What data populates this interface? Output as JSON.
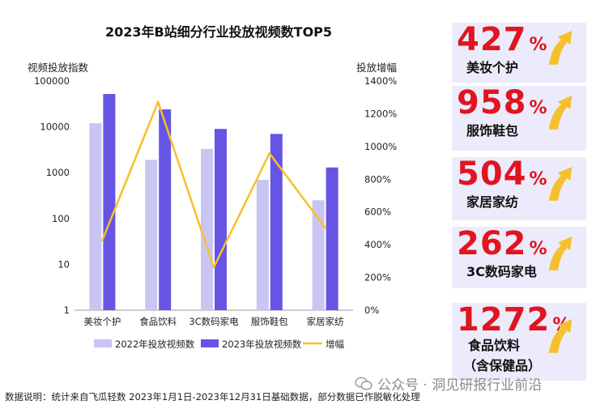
{
  "chart_data": {
    "type": "bar+line",
    "title": "2023年B站细分行业投放视频数TOP5",
    "left_axis_label": "视频投放指数",
    "right_axis_label": "投放增幅",
    "categories": [
      "美妆个护",
      "食品饮料",
      "3C数码家电",
      "服饰鞋包",
      "家居家纺"
    ],
    "left_axis": {
      "scale": "log",
      "ticks": [
        "1",
        "10",
        "100",
        "1000",
        "10000",
        "100000"
      ],
      "range": [
        1,
        100000
      ]
    },
    "right_axis": {
      "ticks": [
        "0%",
        "200%",
        "400%",
        "600%",
        "800%",
        "1000%",
        "1200%",
        "1400%"
      ],
      "range": [
        0,
        1400
      ]
    },
    "series": [
      {
        "name": "2022年投放视频数",
        "type": "bar",
        "color": "#c9c5f3",
        "values": [
          12000,
          1900,
          3300,
          700,
          250
        ]
      },
      {
        "name": "2023年投放视频数",
        "type": "bar",
        "color": "#6655e4",
        "values": [
          52000,
          24000,
          9000,
          7000,
          1300
        ]
      },
      {
        "name": "增幅",
        "type": "line",
        "color": "#f6c02c",
        "values": [
          427,
          1272,
          262,
          958,
          504
        ]
      }
    ]
  },
  "stats": [
    {
      "number": "427",
      "unit": "%",
      "label": "美妆个护"
    },
    {
      "number": "958",
      "unit": "%",
      "label": "服饰鞋包"
    },
    {
      "number": "504",
      "unit": "%",
      "label": "家居家纺"
    },
    {
      "number": "262",
      "unit": "%",
      "label": "3C数码家电"
    },
    {
      "number": "1272",
      "unit": "%",
      "label": "食品饮料",
      "sub_label": "（含保健品）"
    }
  ],
  "watermark": "公众号 · 洞见研报行业前沿",
  "footnote": "数据说明：统计来自飞瓜轻数 2023年1月1日-2023年12月31日基础数据，部分数据已作脱敏化处理",
  "colors": {
    "accent_red": "#e01520",
    "arrow_yellow": "#f6c02c",
    "panel_bg": "#ecebfb"
  }
}
